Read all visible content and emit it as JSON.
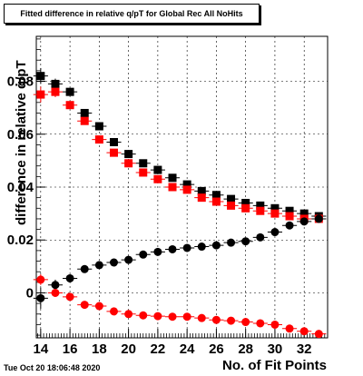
{
  "title": "Fitted difference in relative q/pT for Global Rec All NoHits",
  "footer": "Tue Oct 20 18:06:48 2020",
  "chart_data": {
    "type": "scatter",
    "title": "Fitted difference in relative q/pT for Global Rec All NoHits",
    "xlabel": "No. of Fit Points",
    "ylabel": "difference in relative q/pT",
    "xlim": [
      13.7,
      33.6
    ],
    "ylim": [
      -0.017,
      0.097
    ],
    "grid": true,
    "x_ticks": [
      "14",
      "16",
      "18",
      "20",
      "22",
      "24",
      "26",
      "28",
      "30",
      "32"
    ],
    "y_ticks": [
      "0",
      "0.02",
      "0.04",
      "0.06",
      "0.08"
    ],
    "x": [
      14,
      15,
      16,
      17,
      18,
      19,
      20,
      21,
      22,
      23,
      24,
      25,
      26,
      27,
      28,
      29,
      30,
      31,
      32,
      33
    ],
    "series": [
      {
        "marker": "square",
        "color": "#000000",
        "values": [
          0.082,
          0.079,
          0.076,
          0.068,
          0.063,
          0.057,
          0.0525,
          0.049,
          0.0465,
          0.0435,
          0.041,
          0.0385,
          0.037,
          0.0355,
          0.034,
          0.033,
          0.032,
          0.031,
          0.03,
          0.029
        ],
        "errors": [
          0.003,
          0.002,
          0.0015,
          0.0012,
          0.001,
          0.001,
          0.001,
          0.001,
          0.001,
          0.001,
          0.001,
          0.001,
          0.001,
          0.001,
          0.001,
          0.001,
          0.001,
          0.001,
          0.001,
          0.001
        ]
      },
      {
        "marker": "square",
        "color": "#ff0000",
        "values": [
          0.075,
          0.076,
          0.071,
          0.065,
          0.058,
          0.053,
          0.049,
          0.0455,
          0.043,
          0.04,
          0.039,
          0.036,
          0.0345,
          0.033,
          0.032,
          0.031,
          0.03,
          0.029,
          0.028,
          0.028
        ],
        "errors": [
          0.003,
          0.002,
          0.0015,
          0.0012,
          0.001,
          0.001,
          0.001,
          0.001,
          0.001,
          0.001,
          0.001,
          0.001,
          0.001,
          0.001,
          0.001,
          0.001,
          0.001,
          0.001,
          0.001,
          0.001
        ]
      },
      {
        "marker": "circle",
        "color": "#000000",
        "values": [
          -0.002,
          0.003,
          0.0055,
          0.009,
          0.0105,
          0.0115,
          0.0125,
          0.0145,
          0.0155,
          0.0165,
          0.017,
          0.0175,
          0.018,
          0.019,
          0.0195,
          0.021,
          0.023,
          0.0255,
          0.027,
          0.028
        ],
        "errors": [
          0.004,
          0.002,
          0.0015,
          0.001,
          0.001,
          0.001,
          0.001,
          0.001,
          0.001,
          0.001,
          0.001,
          0.001,
          0.001,
          0.001,
          0.001,
          0.001,
          0.001,
          0.001,
          0.001,
          0.001
        ]
      },
      {
        "marker": "circle",
        "color": "#ff0000",
        "values": [
          0.005,
          0.0,
          -0.0015,
          -0.0045,
          -0.005,
          -0.007,
          -0.008,
          -0.0085,
          -0.0088,
          -0.009,
          -0.009,
          -0.0095,
          -0.0102,
          -0.0105,
          -0.011,
          -0.0115,
          -0.012,
          -0.0135,
          -0.0145,
          -0.0155
        ],
        "errors": [
          0.002,
          0.0015,
          0.001,
          0.001,
          0.001,
          0.001,
          0.001,
          0.001,
          0.001,
          0.001,
          0.001,
          0.001,
          0.001,
          0.001,
          0.001,
          0.001,
          0.001,
          0.001,
          0.001,
          0.001
        ]
      }
    ]
  }
}
